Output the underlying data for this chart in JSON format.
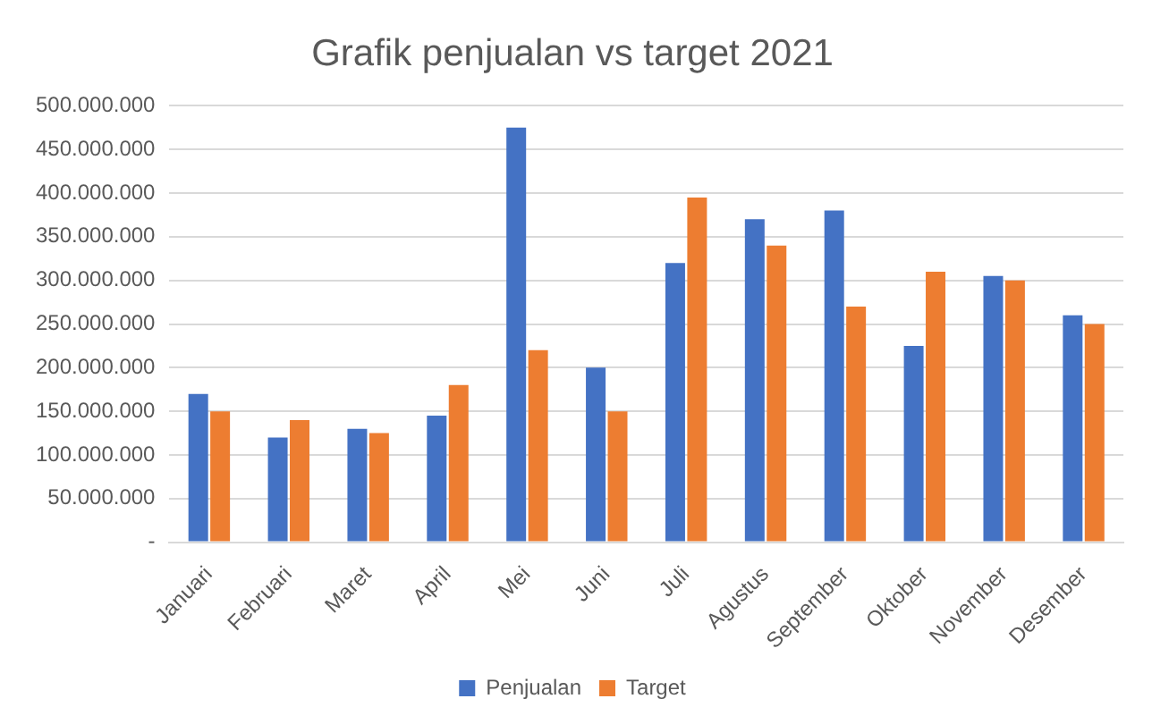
{
  "chart_data": {
    "type": "bar",
    "title": "Grafik penjualan vs target 2021",
    "categories": [
      "Januari",
      "Februari",
      "Maret",
      "April",
      "Mei",
      "Juni",
      "Juli",
      "Agustus",
      "September",
      "Oktober",
      "November",
      "Desember"
    ],
    "series": [
      {
        "name": "Penjualan",
        "color": "#4472c4",
        "values": [
          170000000,
          120000000,
          130000000,
          145000000,
          475000000,
          200000000,
          320000000,
          370000000,
          380000000,
          225000000,
          305000000,
          260000000
        ]
      },
      {
        "name": "Target",
        "color": "#ed7d31",
        "values": [
          150000000,
          140000000,
          125000000,
          180000000,
          220000000,
          150000000,
          395000000,
          340000000,
          270000000,
          310000000,
          300000000,
          250000000
        ]
      }
    ],
    "ylim": [
      0,
      500000000
    ],
    "yticks": [
      {
        "value": 0,
        "label": "-"
      },
      {
        "value": 50000000,
        "label": "50.000.000"
      },
      {
        "value": 100000000,
        "label": "100.000.000"
      },
      {
        "value": 150000000,
        "label": "150.000.000"
      },
      {
        "value": 200000000,
        "label": "200.000.000"
      },
      {
        "value": 250000000,
        "label": "250.000.000"
      },
      {
        "value": 300000000,
        "label": "300.000.000"
      },
      {
        "value": 350000000,
        "label": "350.000.000"
      },
      {
        "value": 400000000,
        "label": "400.000.000"
      },
      {
        "value": 450000000,
        "label": "450.000.000"
      },
      {
        "value": 500000000,
        "label": "500.000.000"
      }
    ],
    "grid": "y",
    "legend": "bottom"
  }
}
